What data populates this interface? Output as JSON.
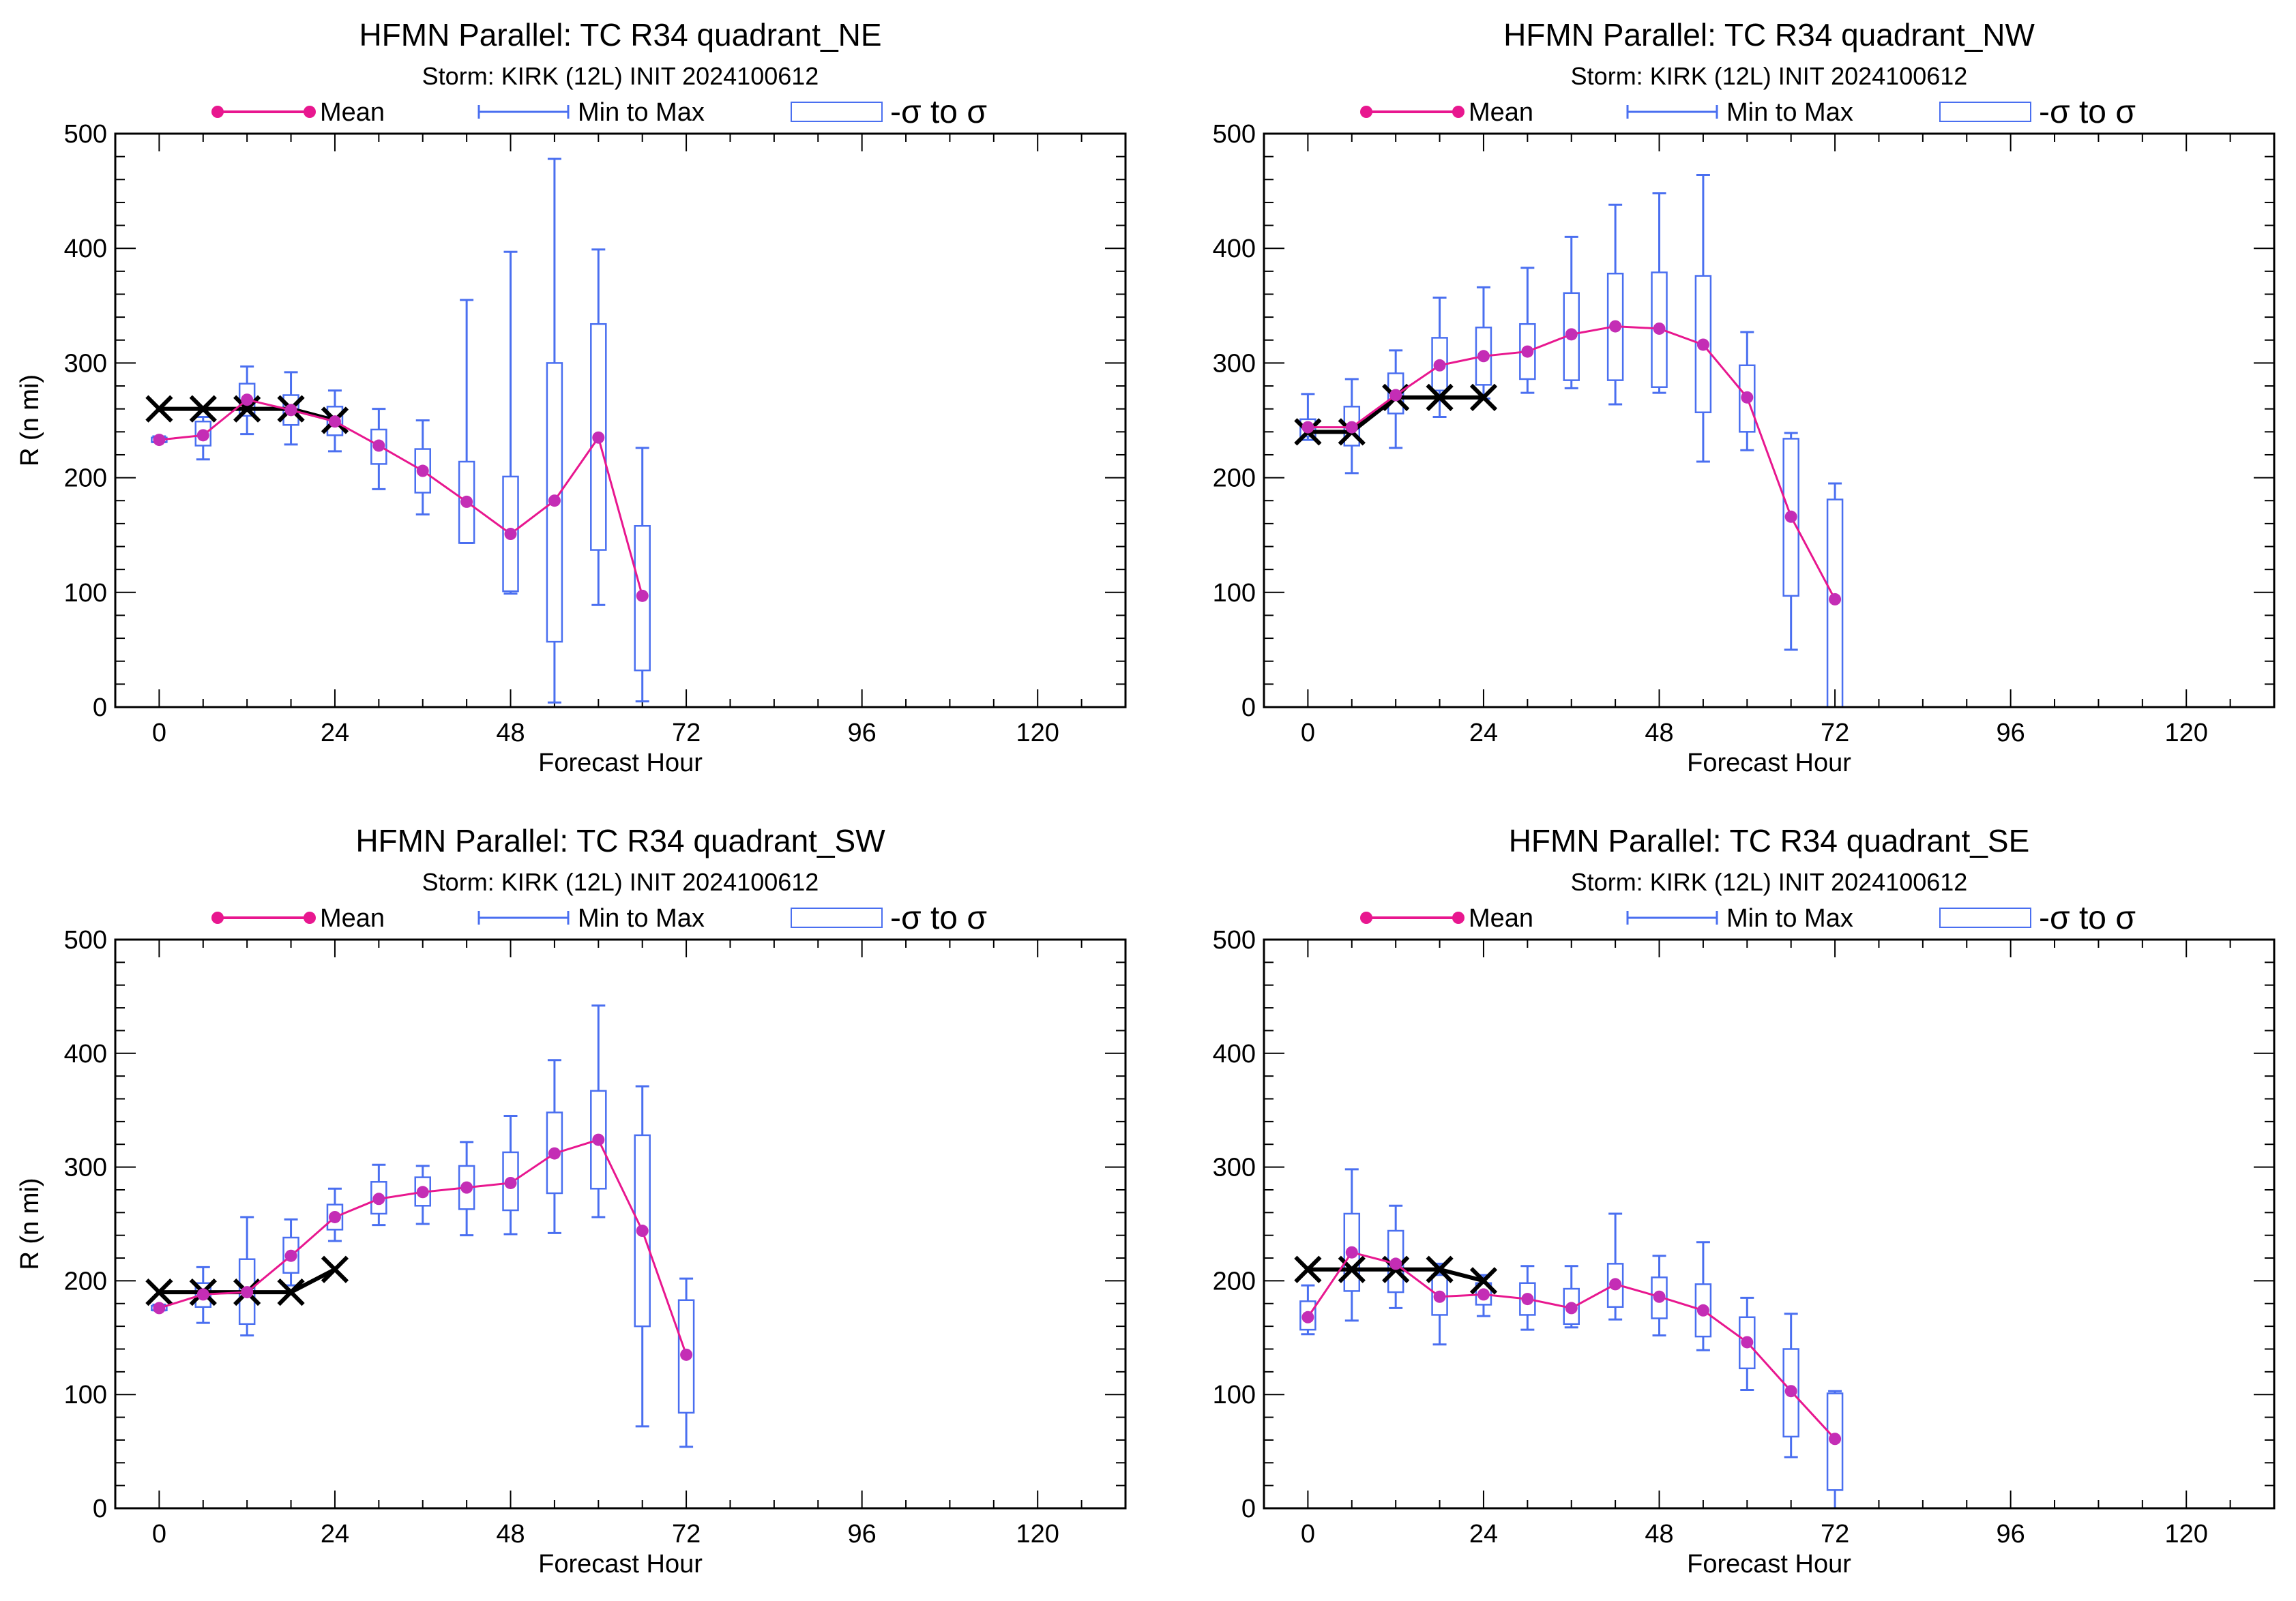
{
  "figure": {
    "panel_titles": [
      "HFMN Parallel: TC  R34 quadrant_NE",
      "HFMN Parallel: TC  R34 quadrant_NW",
      "HFMN Parallel: TC  R34 quadrant_SW",
      "HFMN Parallel: TC  R34 quadrant_SE"
    ]
  },
  "colors": {
    "mean": "#e8178f",
    "mean_marker": "#c42db5",
    "range": "#4a6ff0",
    "observed": "#000000"
  },
  "legend": {
    "mean_label": "Mean",
    "minmax_label": "Min to Max",
    "sigma_label": "-σ to σ"
  },
  "chart_data": [
    {
      "type": "line",
      "title": "HFMN Parallel: TC  R34 quadrant_NE",
      "subtitle": "Storm: KIRK (12L) INIT 2024100612",
      "xlabel": "Forecast Hour",
      "ylabel": "R (n mi)",
      "xlim": [
        -6,
        132
      ],
      "ylim": [
        0,
        500
      ],
      "xticks": [
        0,
        24,
        48,
        72,
        96,
        120
      ],
      "yticks": [
        0,
        100,
        200,
        300,
        400,
        500
      ],
      "legend_position": "top",
      "mean": {
        "x": [
          0,
          6,
          12,
          18,
          24,
          30,
          36,
          42,
          48,
          54,
          60,
          66
        ],
        "y": [
          233,
          237,
          268,
          259,
          249,
          228,
          206,
          179,
          151,
          180,
          235,
          97
        ]
      },
      "boxes": [
        {
          "x": 0,
          "min": 231,
          "max": 236,
          "low": 231,
          "high": 235
        },
        {
          "x": 6,
          "min": 216,
          "max": 253,
          "low": 228,
          "high": 249
        },
        {
          "x": 12,
          "min": 238,
          "max": 297,
          "low": 254,
          "high": 282
        },
        {
          "x": 18,
          "min": 229,
          "max": 292,
          "low": 246,
          "high": 272
        },
        {
          "x": 24,
          "min": 223,
          "max": 276,
          "low": 237,
          "high": 262
        },
        {
          "x": 30,
          "min": 190,
          "max": 260,
          "low": 212,
          "high": 242
        },
        {
          "x": 36,
          "min": 168,
          "max": 250,
          "low": 187,
          "high": 225
        },
        {
          "x": 42,
          "min": 143,
          "max": 355,
          "low": 143,
          "high": 214
        },
        {
          "x": 48,
          "min": 99,
          "max": 397,
          "low": 101,
          "high": 201
        },
        {
          "x": 54,
          "min": 4,
          "max": 478,
          "low": 57,
          "high": 300
        },
        {
          "x": 60,
          "min": 89,
          "max": 399,
          "low": 137,
          "high": 334
        },
        {
          "x": 66,
          "min": 5,
          "max": 226,
          "low": 32,
          "high": 158
        }
      ],
      "observed": {
        "x": [
          0,
          6,
          12,
          18,
          24
        ],
        "y": [
          260,
          260,
          260,
          260,
          250
        ]
      }
    },
    {
      "type": "line",
      "title": "HFMN Parallel: TC  R34 quadrant_NW",
      "subtitle": "Storm: KIRK (12L) INIT 2024100612",
      "xlabel": "Forecast Hour",
      "ylabel": "R (n mi)",
      "xlim": [
        -6,
        132
      ],
      "ylim": [
        0,
        500
      ],
      "xticks": [
        0,
        24,
        48,
        72,
        96,
        120
      ],
      "yticks": [
        0,
        100,
        200,
        300,
        400,
        500
      ],
      "legend_position": "top",
      "mean": {
        "x": [
          0,
          6,
          12,
          18,
          24,
          30,
          36,
          42,
          48,
          54,
          60,
          66,
          72
        ],
        "y": [
          244,
          244,
          272,
          298,
          306,
          310,
          325,
          332,
          330,
          316,
          270,
          166,
          94
        ]
      },
      "boxes": [
        {
          "x": 0,
          "min": 233,
          "max": 273,
          "low": 236,
          "high": 251
        },
        {
          "x": 6,
          "min": 204,
          "max": 286,
          "low": 228,
          "high": 262
        },
        {
          "x": 12,
          "min": 226,
          "max": 311,
          "low": 256,
          "high": 291
        },
        {
          "x": 18,
          "min": 253,
          "max": 357,
          "low": 276,
          "high": 322
        },
        {
          "x": 24,
          "min": 269,
          "max": 366,
          "low": 281,
          "high": 331
        },
        {
          "x": 30,
          "min": 274,
          "max": 383,
          "low": 286,
          "high": 334
        },
        {
          "x": 36,
          "min": 278,
          "max": 410,
          "low": 285,
          "high": 361
        },
        {
          "x": 42,
          "min": 264,
          "max": 438,
          "low": 285,
          "high": 378
        },
        {
          "x": 48,
          "min": 274,
          "max": 448,
          "low": 279,
          "high": 379
        },
        {
          "x": 54,
          "min": 214,
          "max": 464,
          "low": 257,
          "high": 376
        },
        {
          "x": 60,
          "min": 224,
          "max": 327,
          "low": 240,
          "high": 298
        },
        {
          "x": 66,
          "min": 50,
          "max": 239,
          "low": 97,
          "high": 234
        },
        {
          "x": 72,
          "min": 0,
          "max": 195,
          "low": 0,
          "high": 181
        }
      ],
      "observed": {
        "x": [
          0,
          6,
          12,
          18,
          24
        ],
        "y": [
          240,
          240,
          270,
          270,
          270
        ]
      }
    },
    {
      "type": "line",
      "title": "HFMN Parallel: TC  R34 quadrant_SW",
      "subtitle": "Storm: KIRK (12L) INIT 2024100612",
      "xlabel": "Forecast Hour",
      "ylabel": "R (n mi)",
      "xlim": [
        -6,
        132
      ],
      "ylim": [
        0,
        500
      ],
      "xticks": [
        0,
        24,
        48,
        72,
        96,
        120
      ],
      "yticks": [
        0,
        100,
        200,
        300,
        400,
        500
      ],
      "legend_position": "top",
      "mean": {
        "x": [
          0,
          6,
          12,
          18,
          24,
          30,
          36,
          42,
          48,
          54,
          60,
          66,
          72
        ],
        "y": [
          176,
          188,
          190,
          222,
          256,
          272,
          278,
          282,
          286,
          312,
          324,
          244,
          135
        ]
      },
      "boxes": [
        {
          "x": 0,
          "min": 174,
          "max": 179,
          "low": 174,
          "high": 178
        },
        {
          "x": 6,
          "min": 163,
          "max": 212,
          "low": 177,
          "high": 198
        },
        {
          "x": 12,
          "min": 152,
          "max": 256,
          "low": 162,
          "high": 219
        },
        {
          "x": 18,
          "min": 196,
          "max": 254,
          "low": 207,
          "high": 238
        },
        {
          "x": 24,
          "min": 235,
          "max": 281,
          "low": 245,
          "high": 267
        },
        {
          "x": 30,
          "min": 249,
          "max": 302,
          "low": 259,
          "high": 287
        },
        {
          "x": 36,
          "min": 250,
          "max": 301,
          "low": 266,
          "high": 291
        },
        {
          "x": 42,
          "min": 240,
          "max": 322,
          "low": 263,
          "high": 301
        },
        {
          "x": 48,
          "min": 241,
          "max": 345,
          "low": 262,
          "high": 313
        },
        {
          "x": 54,
          "min": 242,
          "max": 394,
          "low": 277,
          "high": 348
        },
        {
          "x": 60,
          "min": 256,
          "max": 442,
          "low": 281,
          "high": 367
        },
        {
          "x": 66,
          "min": 72,
          "max": 371,
          "low": 160,
          "high": 328
        },
        {
          "x": 72,
          "min": 54,
          "max": 202,
          "low": 84,
          "high": 183
        }
      ],
      "observed": {
        "x": [
          0,
          6,
          12,
          18,
          24
        ],
        "y": [
          190,
          190,
          190,
          190,
          210
        ]
      }
    },
    {
      "type": "line",
      "title": "HFMN Parallel: TC  R34 quadrant_SE",
      "subtitle": "Storm: KIRK (12L) INIT 2024100612",
      "xlabel": "Forecast Hour",
      "ylabel": "R (n mi)",
      "xlim": [
        -6,
        132
      ],
      "ylim": [
        0,
        500
      ],
      "xticks": [
        0,
        24,
        48,
        72,
        96,
        120
      ],
      "yticks": [
        0,
        100,
        200,
        300,
        400,
        500
      ],
      "legend_position": "top",
      "mean": {
        "x": [
          0,
          6,
          12,
          18,
          24,
          30,
          36,
          42,
          48,
          54,
          60,
          66,
          72
        ],
        "y": [
          168,
          225,
          215,
          186,
          188,
          184,
          176,
          197,
          186,
          174,
          146,
          103,
          61
        ]
      },
      "boxes": [
        {
          "x": 0,
          "min": 153,
          "max": 196,
          "low": 157,
          "high": 182
        },
        {
          "x": 6,
          "min": 165,
          "max": 298,
          "low": 191,
          "high": 259
        },
        {
          "x": 12,
          "min": 176,
          "max": 266,
          "low": 190,
          "high": 244
        },
        {
          "x": 18,
          "min": 144,
          "max": 215,
          "low": 170,
          "high": 205
        },
        {
          "x": 24,
          "min": 169,
          "max": 205,
          "low": 179,
          "high": 198
        },
        {
          "x": 30,
          "min": 157,
          "max": 213,
          "low": 170,
          "high": 198
        },
        {
          "x": 36,
          "min": 159,
          "max": 213,
          "low": 162,
          "high": 193
        },
        {
          "x": 42,
          "min": 166,
          "max": 259,
          "low": 177,
          "high": 215
        },
        {
          "x": 48,
          "min": 152,
          "max": 222,
          "low": 167,
          "high": 203
        },
        {
          "x": 54,
          "min": 139,
          "max": 234,
          "low": 151,
          "high": 197
        },
        {
          "x": 60,
          "min": 104,
          "max": 185,
          "low": 123,
          "high": 168
        },
        {
          "x": 66,
          "min": 45,
          "max": 171,
          "low": 63,
          "high": 140
        },
        {
          "x": 72,
          "min": 0,
          "max": 103,
          "low": 16,
          "high": 101
        }
      ],
      "observed": {
        "x": [
          0,
          6,
          12,
          18,
          24
        ],
        "y": [
          210,
          210,
          210,
          210,
          200
        ]
      }
    }
  ]
}
